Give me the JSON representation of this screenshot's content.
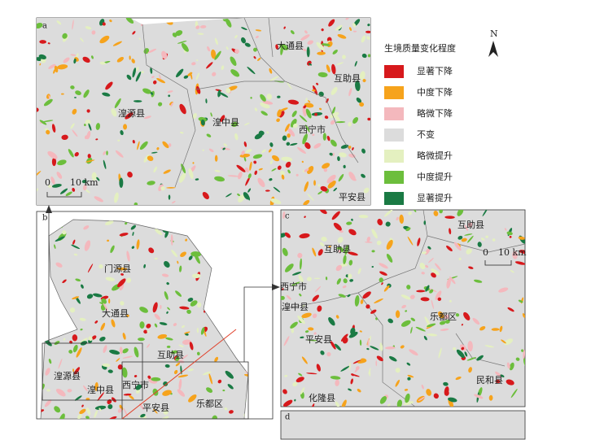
{
  "north": "N",
  "legend": {
    "title": "生境质量变化程度",
    "items": [
      {
        "label": "显著下降",
        "color": "#d7191c"
      },
      {
        "label": "中度下降",
        "color": "#f6a31c"
      },
      {
        "label": "略微下降",
        "color": "#f4b8bd"
      },
      {
        "label": "不变",
        "color": "#dcdcdc"
      },
      {
        "label": "略微提升",
        "color": "#e4f0c0"
      },
      {
        "label": "中度提升",
        "color": "#6cbe3c"
      },
      {
        "label": "显著提升",
        "color": "#1a7a44"
      }
    ]
  },
  "panel_a": {
    "label": "a",
    "places": [
      "大通县",
      "互助县",
      "湟源县",
      "湟中县",
      "西宁市",
      "平安县"
    ],
    "scale": {
      "zero": "0",
      "length": "10 km"
    }
  },
  "panel_b": {
    "label": "b",
    "places": [
      "门源县",
      "大通县",
      "互助县",
      "湟源县",
      "湟中县",
      "西宁市",
      "平安县",
      "乐都区"
    ]
  },
  "panel_c": {
    "label": "c",
    "places": [
      "互助县",
      "互助县",
      "西宁市",
      "湟中县",
      "乐都区",
      "平安县",
      "民和县",
      "化隆县"
    ],
    "scale": {
      "zero": "0",
      "length": "10 km"
    }
  },
  "panel_d": {
    "label": "d"
  }
}
